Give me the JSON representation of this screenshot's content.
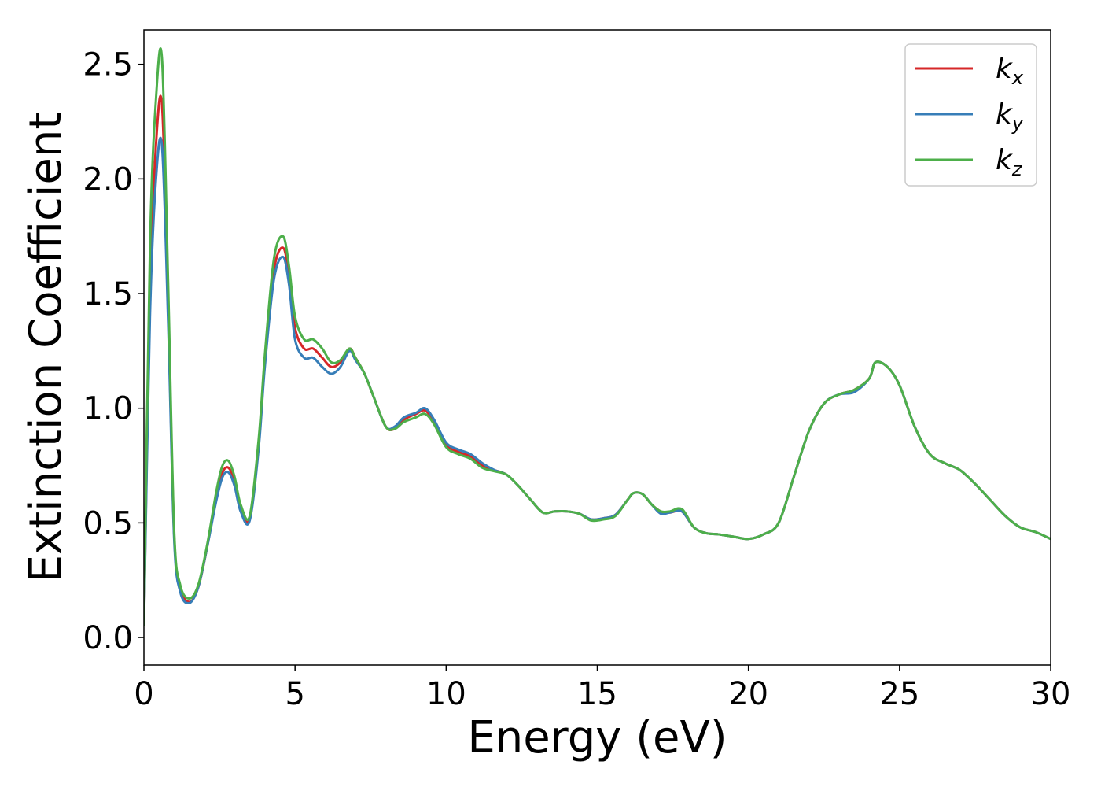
{
  "chart_data": {
    "type": "line",
    "title": "",
    "xlabel": "Energy (eV)",
    "ylabel": "Extinction Coefficient",
    "xlim": [
      0,
      30
    ],
    "ylim": [
      -0.12,
      2.65
    ],
    "xticks": [
      0,
      5,
      10,
      15,
      20,
      25,
      30
    ],
    "yticks": [
      0.0,
      0.5,
      1.0,
      1.5,
      2.0,
      2.5
    ],
    "xtick_labels": [
      "0",
      "5",
      "10",
      "15",
      "20",
      "25",
      "30"
    ],
    "ytick_labels": [
      "0.0",
      "0.5",
      "1.0",
      "1.5",
      "2.0",
      "2.5"
    ],
    "grid": false,
    "legend_position": "top-right",
    "x": [
      0.0,
      0.2,
      0.4,
      0.6,
      0.8,
      1.0,
      1.2,
      1.5,
      1.8,
      2.1,
      2.4,
      2.6,
      2.8,
      3.0,
      3.2,
      3.5,
      3.8,
      4.0,
      4.3,
      4.6,
      4.8,
      5.0,
      5.3,
      5.6,
      5.9,
      6.2,
      6.5,
      6.8,
      7.0,
      7.3,
      7.6,
      8.0,
      8.3,
      8.6,
      9.0,
      9.3,
      9.6,
      10.0,
      10.4,
      10.8,
      11.2,
      11.6,
      12.0,
      12.4,
      12.8,
      13.2,
      13.6,
      14.0,
      14.4,
      14.8,
      15.2,
      15.6,
      16.0,
      16.2,
      16.5,
      16.8,
      17.1,
      17.4,
      17.8,
      18.2,
      18.6,
      19.0,
      19.5,
      20.0,
      20.5,
      21.0,
      21.5,
      22.0,
      22.5,
      23.0,
      23.5,
      24.0,
      24.2,
      24.6,
      25.0,
      25.5,
      26.0,
      26.5,
      27.0,
      27.5,
      28.0,
      28.5,
      29.0,
      29.5,
      30.0
    ],
    "series": [
      {
        "name": "k_x",
        "label_base": "k",
        "label_sub": "x",
        "color": "#d62728",
        "values": [
          0.05,
          1.5,
          2.15,
          2.32,
          1.45,
          0.45,
          0.22,
          0.155,
          0.22,
          0.4,
          0.62,
          0.72,
          0.74,
          0.68,
          0.56,
          0.52,
          0.85,
          1.2,
          1.6,
          1.7,
          1.58,
          1.35,
          1.26,
          1.26,
          1.22,
          1.18,
          1.2,
          1.26,
          1.22,
          1.15,
          1.05,
          0.92,
          0.91,
          0.95,
          0.975,
          0.99,
          0.94,
          0.84,
          0.81,
          0.79,
          0.75,
          0.73,
          0.71,
          0.66,
          0.6,
          0.545,
          0.55,
          0.55,
          0.54,
          0.515,
          0.52,
          0.535,
          0.6,
          0.63,
          0.625,
          0.58,
          0.55,
          0.545,
          0.55,
          0.48,
          0.455,
          0.45,
          0.44,
          0.43,
          0.45,
          0.5,
          0.7,
          0.9,
          1.02,
          1.06,
          1.08,
          1.13,
          1.2,
          1.18,
          1.1,
          0.92,
          0.8,
          0.76,
          0.73,
          0.67,
          0.6,
          0.53,
          0.48,
          0.46,
          0.43
        ]
      },
      {
        "name": "k_y",
        "label_base": "k",
        "label_sub": "y",
        "color": "#377eb8",
        "values": [
          0.05,
          1.4,
          2.0,
          2.14,
          1.38,
          0.43,
          0.2,
          0.15,
          0.22,
          0.4,
          0.6,
          0.7,
          0.72,
          0.66,
          0.55,
          0.51,
          0.83,
          1.18,
          1.56,
          1.66,
          1.54,
          1.3,
          1.22,
          1.22,
          1.18,
          1.15,
          1.18,
          1.25,
          1.21,
          1.15,
          1.05,
          0.92,
          0.92,
          0.96,
          0.98,
          1.0,
          0.95,
          0.85,
          0.82,
          0.8,
          0.76,
          0.73,
          0.71,
          0.66,
          0.6,
          0.545,
          0.55,
          0.55,
          0.54,
          0.515,
          0.52,
          0.535,
          0.6,
          0.63,
          0.625,
          0.58,
          0.54,
          0.545,
          0.55,
          0.48,
          0.455,
          0.45,
          0.44,
          0.43,
          0.45,
          0.5,
          0.7,
          0.9,
          1.02,
          1.06,
          1.07,
          1.13,
          1.2,
          1.18,
          1.1,
          0.92,
          0.8,
          0.76,
          0.73,
          0.67,
          0.6,
          0.53,
          0.48,
          0.46,
          0.43
        ]
      },
      {
        "name": "k_z",
        "label_base": "k",
        "label_sub": "z",
        "color": "#4daf4a",
        "values": [
          0.05,
          1.7,
          2.35,
          2.52,
          1.55,
          0.47,
          0.23,
          0.17,
          0.23,
          0.41,
          0.64,
          0.75,
          0.77,
          0.7,
          0.58,
          0.53,
          0.87,
          1.23,
          1.65,
          1.75,
          1.62,
          1.4,
          1.3,
          1.3,
          1.26,
          1.2,
          1.21,
          1.26,
          1.22,
          1.15,
          1.05,
          0.92,
          0.91,
          0.94,
          0.96,
          0.975,
          0.93,
          0.83,
          0.8,
          0.78,
          0.74,
          0.725,
          0.71,
          0.66,
          0.6,
          0.545,
          0.55,
          0.55,
          0.54,
          0.51,
          0.515,
          0.53,
          0.6,
          0.63,
          0.625,
          0.58,
          0.55,
          0.55,
          0.56,
          0.48,
          0.455,
          0.45,
          0.44,
          0.43,
          0.45,
          0.5,
          0.7,
          0.9,
          1.02,
          1.06,
          1.08,
          1.13,
          1.2,
          1.18,
          1.1,
          0.92,
          0.8,
          0.76,
          0.73,
          0.67,
          0.6,
          0.53,
          0.48,
          0.46,
          0.43
        ]
      }
    ]
  }
}
